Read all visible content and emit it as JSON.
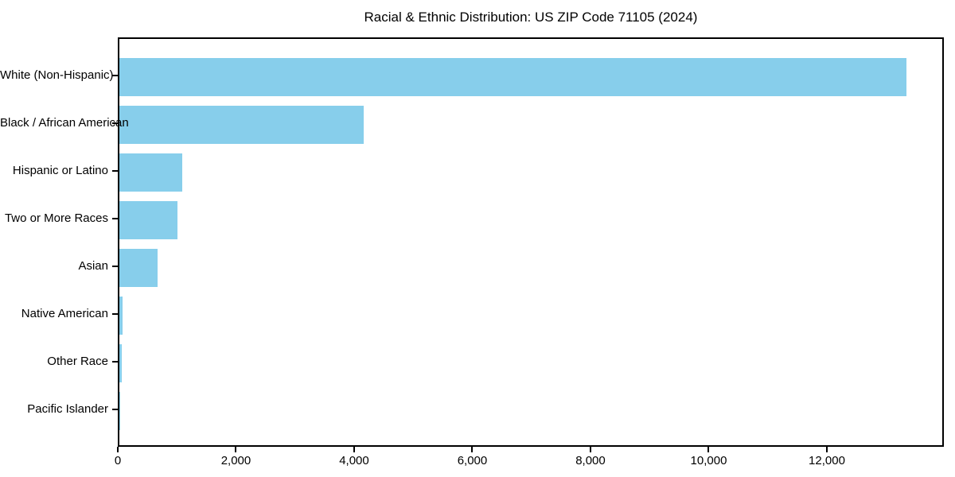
{
  "title": "Racial & Ethnic Distribution: US ZIP Code 71105 (2024)",
  "colors": {
    "bar": "#87CEEB",
    "axis": "#000000",
    "text": "#000000",
    "background": "#FFFFFF"
  },
  "chart_data": {
    "type": "bar",
    "orientation": "horizontal",
    "title": "Racial & Ethnic Distribution: US ZIP Code 71105 (2024)",
    "categories": [
      "White (Non-Hispanic)",
      "Black / African American",
      "Hispanic or Latino",
      "Two or More Races",
      "Asian",
      "Native American",
      "Other Race",
      "Pacific Islander"
    ],
    "values": [
      13320,
      4130,
      1060,
      980,
      650,
      60,
      40,
      5
    ],
    "xlabel": "",
    "ylabel": "",
    "xlim": [
      0,
      13980
    ],
    "x_ticks": [
      0,
      2000,
      4000,
      6000,
      8000,
      10000,
      12000
    ],
    "x_tick_labels": [
      "0",
      "2,000",
      "4,000",
      "6,000",
      "8,000",
      "10,000",
      "12,000"
    ],
    "grid": false,
    "legend": "none",
    "bar_color": "#87CEEB"
  }
}
